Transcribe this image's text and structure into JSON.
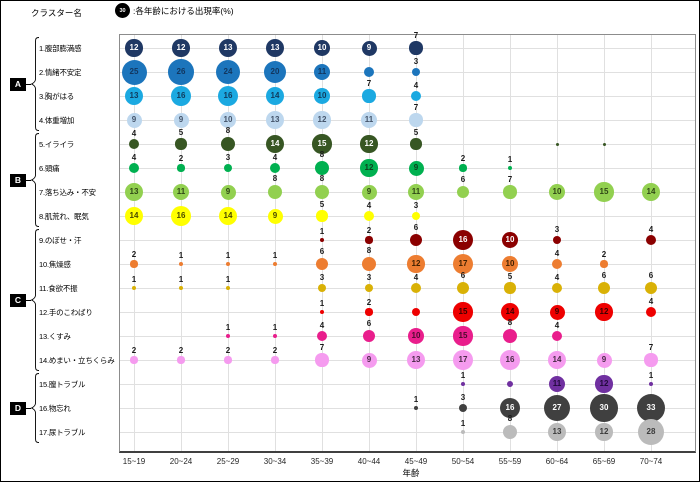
{
  "header": {
    "cluster_label": "クラスター名",
    "legend_value": "30",
    "legend_text": ":各年齢における出現率(%)"
  },
  "chart_data": {
    "type": "bubble",
    "note": "bubble size and printed number = appearance rate (%) per age group; values entries: number = labeled bubble, {d:px} = unlabeled small dot, null = no data",
    "xlabel": "年齢",
    "x_categories": [
      "15~19",
      "20~24",
      "25~29",
      "30~34",
      "35~39",
      "40~44",
      "45~49",
      "50~54",
      "55~59",
      "60~64",
      "65~69",
      "70~74"
    ],
    "groups": [
      {
        "label": "A",
        "from": 1,
        "to": 4
      },
      {
        "label": "B",
        "from": 5,
        "to": 8
      },
      {
        "label": "C",
        "from": 9,
        "to": 14
      },
      {
        "label": "D",
        "from": 15,
        "to": 17
      }
    ],
    "rows": [
      {
        "label": "1.腹部膨満感",
        "color": "#1F3864",
        "inner": "#FFFFFF",
        "values": [
          12,
          12,
          13,
          13,
          10,
          9,
          7,
          null,
          null,
          null,
          null,
          null
        ]
      },
      {
        "label": "2.情緒不安定",
        "color": "#1C75BC",
        "inner": "#12365E",
        "values": [
          25,
          26,
          24,
          20,
          11,
          {
            "d": 10
          },
          3,
          null,
          null,
          null,
          null,
          null
        ]
      },
      {
        "label": "3.胸がはる",
        "color": "#1BA9E1",
        "inner": "#103A5C",
        "values": [
          13,
          16,
          16,
          14,
          10,
          7,
          4,
          null,
          null,
          null,
          null,
          null
        ]
      },
      {
        "label": "4.体重増加",
        "color": "#BDD7EE",
        "inner": "#44546A",
        "values": [
          9,
          9,
          10,
          13,
          12,
          11,
          7,
          null,
          null,
          null,
          null,
          null
        ]
      },
      {
        "label": "5.イライラ",
        "color": "#375623",
        "inner": "#FFFFFF",
        "values": [
          4,
          5,
          8,
          14,
          15,
          12,
          5,
          null,
          null,
          {
            "d": 3
          },
          {
            "d": 3
          },
          null
        ]
      },
      {
        "label": "6.頭痛",
        "color": "#00B050",
        "inner": "#0E3D1C",
        "values": [
          4,
          2,
          3,
          4,
          8,
          12,
          9,
          2,
          1,
          null,
          null,
          null
        ]
      },
      {
        "label": "7.落ち込み・不安",
        "color": "#92D050",
        "inner": "#2F4716",
        "values": [
          13,
          11,
          9,
          8,
          8,
          9,
          11,
          6,
          7,
          10,
          15,
          14
        ]
      },
      {
        "label": "8.肌荒れ、眠気",
        "color": "#FFFF00",
        "inner": "#4A4A00",
        "values": [
          14,
          16,
          14,
          9,
          5,
          4,
          3,
          null,
          null,
          null,
          null,
          null
        ]
      },
      {
        "label": "9.のぼせ・汗",
        "color": "#8B0000",
        "inner": "#FFFFFF",
        "values": [
          null,
          null,
          null,
          null,
          1,
          2,
          6,
          16,
          10,
          3,
          null,
          4
        ]
      },
      {
        "label": "10.焦燥感",
        "color": "#ED7D31",
        "inner": "#402000",
        "values": [
          2,
          1,
          1,
          1,
          6,
          8,
          12,
          17,
          10,
          4,
          2,
          null
        ]
      },
      {
        "label": "11.食欲不振",
        "color": "#D9B106",
        "inner": "#3F3000",
        "values": [
          1,
          1,
          1,
          null,
          3,
          3,
          4,
          6,
          5,
          4,
          6,
          6
        ]
      },
      {
        "label": "12.手のこわばり",
        "color": "#EE0000",
        "inner": "#3D0000",
        "values": [
          null,
          null,
          null,
          null,
          1,
          2,
          {
            "d": 8
          },
          15,
          14,
          9,
          12,
          4
        ]
      },
      {
        "label": "13.くすみ",
        "color": "#E91E8C",
        "inner": "#4B0A2E",
        "values": [
          null,
          null,
          1,
          1,
          4,
          6,
          10,
          15,
          8,
          4,
          null,
          null
        ]
      },
      {
        "label": "14.めまい・立ちくらみ",
        "color": "#F59BEF",
        "inner": "#4A2B47",
        "values": [
          2,
          2,
          2,
          2,
          7,
          9,
          13,
          17,
          16,
          14,
          9,
          7
        ]
      },
      {
        "label": "15.膣トラブル",
        "color": "#7030A0",
        "inner": "#20093A",
        "values": [
          null,
          null,
          null,
          null,
          null,
          null,
          null,
          1,
          {
            "d": 6
          },
          11,
          12,
          1
        ]
      },
      {
        "label": "16.物忘れ",
        "color": "#404040",
        "inner": "#FFFFFF",
        "values": [
          null,
          null,
          null,
          null,
          null,
          null,
          1,
          3,
          16,
          27,
          30,
          33
        ]
      },
      {
        "label": "17.尿トラブル",
        "color": "#BBBBBB",
        "inner": "#3B3B3B",
        "values": [
          null,
          null,
          null,
          null,
          null,
          null,
          null,
          1,
          8,
          13,
          12,
          28
        ]
      }
    ]
  }
}
